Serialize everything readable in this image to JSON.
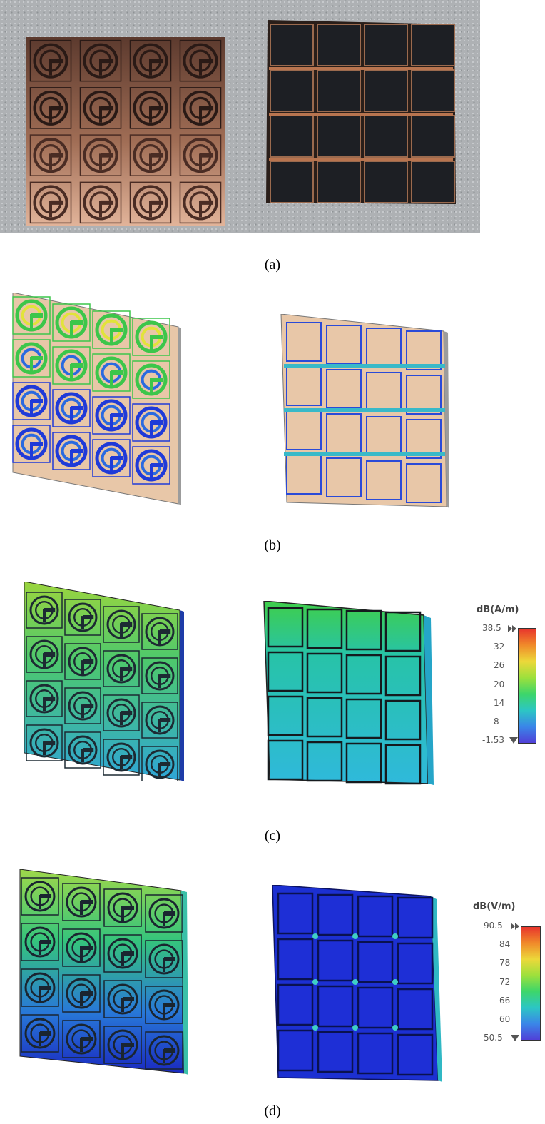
{
  "captions": {
    "a": "(a)",
    "b": "(b)",
    "c": "(c)",
    "d": "(d)"
  },
  "colors": {
    "copper": "#c99a7e",
    "copper_dark": "#4a2f26",
    "substrate_black": "#1c1d22",
    "trace_copper": "#b8744f",
    "sim_tan": "#e8c7a8",
    "field_blue": "#1f2fd8",
    "field_cyan": "#27b6d6",
    "field_green": "#4cd14a",
    "field_yellow": "#e3e63a",
    "field_red": "#e53b30"
  },
  "legend_h": {
    "title": "dB(A/m)",
    "max": "38.5",
    "ticks": [
      "32",
      "26",
      "20",
      "14",
      "8"
    ],
    "min": "-1.53"
  },
  "legend_e": {
    "title": "dB(V/m)",
    "max": "90.5",
    "ticks": [
      "84",
      "78",
      "72",
      "66",
      "60"
    ],
    "min": "50.5"
  },
  "icons": {
    "legend_max_marker": "double-triangle-right-icon",
    "legend_min_marker": "triangle-down-icon"
  }
}
